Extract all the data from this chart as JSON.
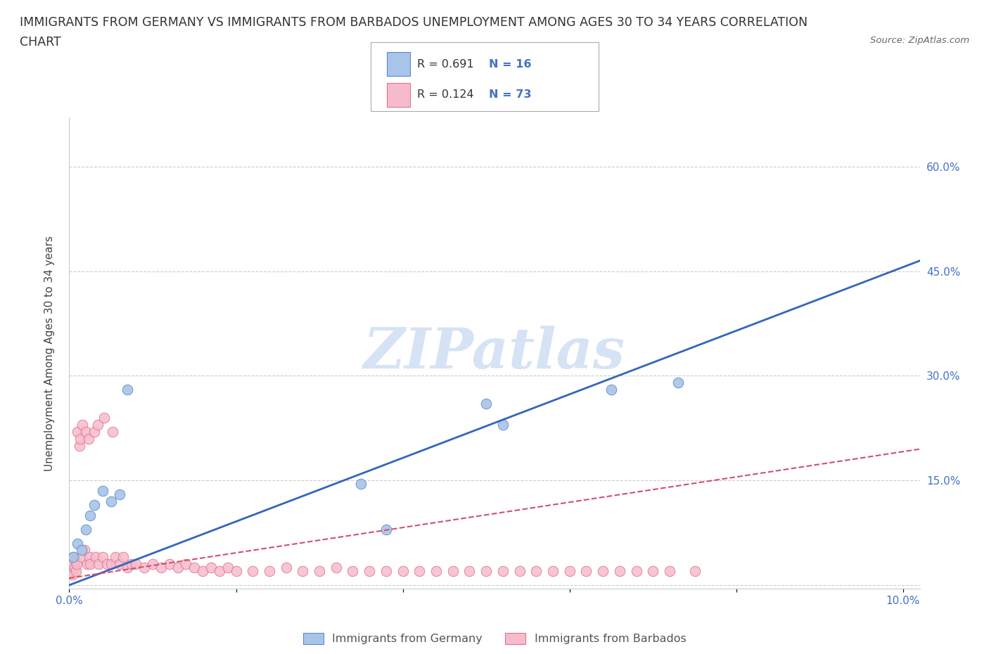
{
  "title_line1": "IMMIGRANTS FROM GERMANY VS IMMIGRANTS FROM BARBADOS UNEMPLOYMENT AMONG AGES 30 TO 34 YEARS CORRELATION",
  "title_line2": "CHART",
  "source": "Source: ZipAtlas.com",
  "ylabel": "Unemployment Among Ages 30 to 34 years",
  "xlim": [
    0.0,
    0.102
  ],
  "ylim": [
    -0.005,
    0.67
  ],
  "germany_color": "#a8c4e8",
  "barbados_color": "#f7bccb",
  "germany_edge": "#5b8ec4",
  "barbados_edge": "#e07090",
  "trend_germany_color": "#3366bb",
  "trend_barbados_color": "#d05070",
  "R_germany": 0.691,
  "N_germany": 16,
  "R_barbados": 0.124,
  "N_barbados": 73,
  "watermark_text": "ZIPatlas",
  "watermark_color": "#c5d8f0",
  "germany_x": [
    0.0005,
    0.001,
    0.0015,
    0.002,
    0.0025,
    0.003,
    0.004,
    0.005,
    0.006,
    0.007,
    0.035,
    0.038,
    0.05,
    0.052,
    0.065,
    0.073
  ],
  "germany_y": [
    0.04,
    0.06,
    0.05,
    0.08,
    0.1,
    0.115,
    0.135,
    0.12,
    0.13,
    0.28,
    0.145,
    0.08,
    0.26,
    0.23,
    0.28,
    0.29
  ],
  "barbados_x": [
    0.0002,
    0.0003,
    0.0004,
    0.0005,
    0.0006,
    0.0007,
    0.0008,
    0.0009,
    0.001,
    0.0012,
    0.0013,
    0.0015,
    0.0016,
    0.0018,
    0.002,
    0.0022,
    0.0023,
    0.0024,
    0.0025,
    0.003,
    0.0032,
    0.0034,
    0.0035,
    0.004,
    0.0042,
    0.0045,
    0.005,
    0.0052,
    0.0055,
    0.006,
    0.0065,
    0.007,
    0.0075,
    0.008,
    0.009,
    0.01,
    0.011,
    0.012,
    0.013,
    0.014,
    0.015,
    0.016,
    0.017,
    0.018,
    0.019,
    0.02,
    0.022,
    0.024,
    0.026,
    0.028,
    0.03,
    0.032,
    0.034,
    0.036,
    0.038,
    0.04,
    0.042,
    0.044,
    0.046,
    0.048,
    0.05,
    0.052,
    0.054,
    0.056,
    0.058,
    0.06,
    0.062,
    0.064,
    0.066,
    0.068,
    0.07,
    0.072,
    0.075
  ],
  "barbados_y": [
    0.02,
    0.03,
    0.015,
    0.04,
    0.025,
    0.035,
    0.02,
    0.03,
    0.22,
    0.2,
    0.21,
    0.04,
    0.23,
    0.05,
    0.22,
    0.03,
    0.21,
    0.04,
    0.03,
    0.22,
    0.04,
    0.23,
    0.03,
    0.04,
    0.24,
    0.03,
    0.03,
    0.22,
    0.04,
    0.03,
    0.04,
    0.025,
    0.03,
    0.03,
    0.025,
    0.03,
    0.025,
    0.03,
    0.025,
    0.03,
    0.025,
    0.02,
    0.025,
    0.02,
    0.025,
    0.02,
    0.02,
    0.02,
    0.025,
    0.02,
    0.02,
    0.025,
    0.02,
    0.02,
    0.02,
    0.02,
    0.02,
    0.02,
    0.02,
    0.02,
    0.02,
    0.02,
    0.02,
    0.02,
    0.02,
    0.02,
    0.02,
    0.02,
    0.02,
    0.02,
    0.02,
    0.02,
    0.02
  ],
  "trend_g_x0": 0.0,
  "trend_g_x1": 0.102,
  "trend_g_y0": 0.0,
  "trend_g_y1": 0.465,
  "trend_b_x0": 0.0,
  "trend_b_x1": 0.102,
  "trend_b_y0": 0.01,
  "trend_b_y1": 0.195,
  "grid_color": "#cccccc",
  "spine_color": "#cccccc",
  "title_color": "#333333",
  "title_fontsize": 12.5,
  "ylabel_color": "#444444",
  "tick_color": "#4472c4",
  "tick_fontsize": 11,
  "source_color": "#666666",
  "background": "#ffffff",
  "y_ticks": [
    0.0,
    0.15,
    0.3,
    0.45,
    0.6
  ],
  "y_tick_labels": [
    "",
    "15.0%",
    "30.0%",
    "45.0%",
    "60.0%"
  ],
  "x_ticks": [
    0.0,
    0.02,
    0.04,
    0.06,
    0.08,
    0.1
  ],
  "x_tick_labels": [
    "0.0%",
    "",
    "",
    "",
    "",
    "10.0%"
  ]
}
